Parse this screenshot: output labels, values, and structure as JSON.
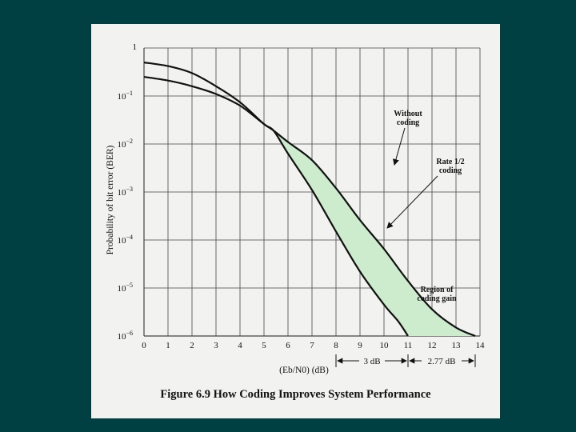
{
  "caption": "Figure 6.9 How Coding Improves System Performance",
  "colors": {
    "background": "#003f42",
    "panel": "#f2f2f0",
    "region": "#cdeccd",
    "curve": "#111111",
    "grid": "#333333"
  },
  "chart_data": {
    "type": "line",
    "title": "",
    "ylabel": "Probability of bit error (BER)",
    "xlabel": "(Eb/N0) (dB)",
    "xlim": [
      0,
      14
    ],
    "ylim_log10": [
      -6,
      0
    ],
    "y_scale": "log",
    "grid": true,
    "x_ticks": [
      "0",
      "1",
      "2",
      "3",
      "4",
      "5",
      "6",
      "7",
      "8",
      "9",
      "10",
      "11",
      "12",
      "13",
      "14"
    ],
    "y_ticks": [
      {
        "base": "1",
        "exp": ""
      },
      {
        "base": "10",
        "exp": "−1"
      },
      {
        "base": "10",
        "exp": "−2"
      },
      {
        "base": "10",
        "exp": "−3"
      },
      {
        "base": "10",
        "exp": "−4"
      },
      {
        "base": "10",
        "exp": "−5"
      },
      {
        "base": "10",
        "exp": "−6"
      }
    ],
    "series": [
      {
        "name": "Without coding",
        "points": [
          [
            0,
            0.25
          ],
          [
            1,
            0.21
          ],
          [
            2,
            0.16
          ],
          [
            3,
            0.11
          ],
          [
            4,
            0.063
          ],
          [
            5,
            0.026
          ],
          [
            5.4,
            0.019
          ],
          [
            6,
            0.011
          ],
          [
            7,
            0.0046
          ],
          [
            8,
            0.0012
          ],
          [
            9,
            0.00026
          ],
          [
            10,
            6.5e-05
          ],
          [
            11,
            1.4e-05
          ],
          [
            12,
            3.6e-06
          ],
          [
            13,
            1.5e-06
          ],
          [
            13.8,
            1e-06
          ]
        ]
      },
      {
        "name": "Rate 1/2 coding",
        "points": [
          [
            0,
            0.5
          ],
          [
            1,
            0.42
          ],
          [
            2,
            0.3
          ],
          [
            3,
            0.16
          ],
          [
            4,
            0.074
          ],
          [
            5,
            0.026
          ],
          [
            5.4,
            0.019
          ],
          [
            6,
            0.0063
          ],
          [
            7,
            0.0011
          ],
          [
            8,
            0.00015
          ],
          [
            9,
            2.2e-05
          ],
          [
            10,
            4.5e-06
          ],
          [
            10.6,
            2e-06
          ],
          [
            11,
            1e-06
          ]
        ]
      }
    ],
    "annotations": {
      "without": [
        "Without",
        "coding"
      ],
      "rate": [
        "Rate 1/2",
        "coding"
      ],
      "region": [
        "Region of",
        "coding gain"
      ]
    },
    "gains": [
      {
        "from": 8,
        "to": 11,
        "label": "3 dB"
      },
      {
        "from": 11,
        "to": 13.8,
        "label": "2.77 dB"
      }
    ]
  }
}
